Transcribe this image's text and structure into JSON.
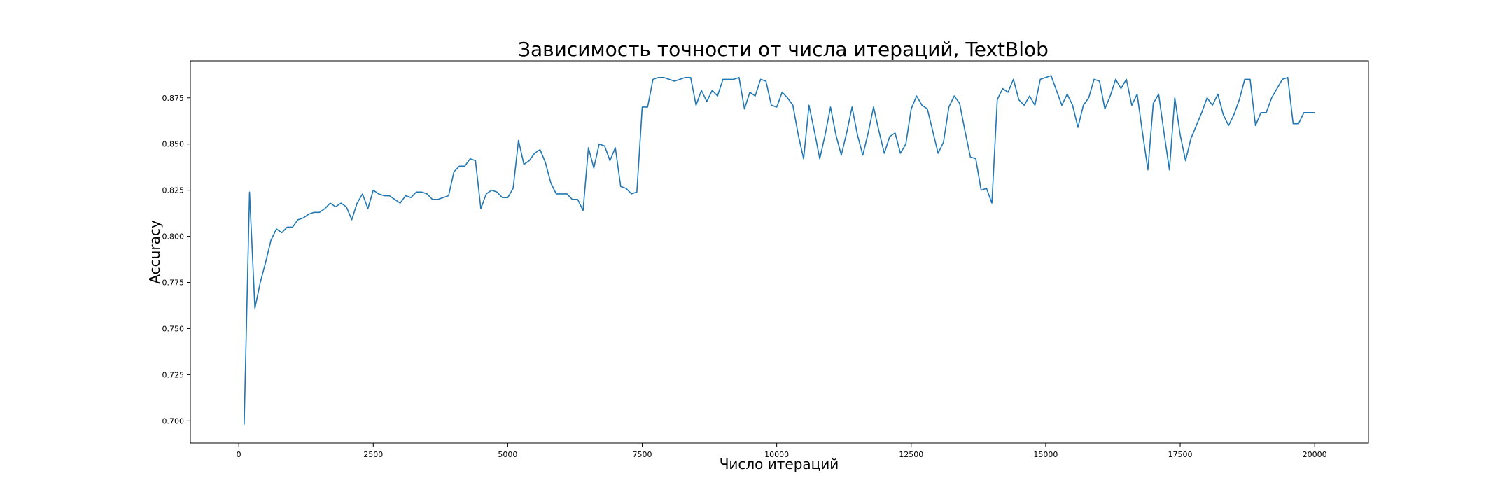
{
  "chart_data": {
    "type": "line",
    "title": "Зависимость точности от числа итераций, TextBlob",
    "xlabel": "Число итераций",
    "ylabel": "Accuracy",
    "xlim": [
      -900,
      21000
    ],
    "ylim": [
      0.688,
      0.895
    ],
    "xticks": [
      0,
      2500,
      5000,
      7500,
      10000,
      12500,
      15000,
      17500,
      20000
    ],
    "xtick_labels": [
      "0",
      "2500",
      "5000",
      "7500",
      "10000",
      "12500",
      "15000",
      "17500",
      "20000"
    ],
    "yticks": [
      0.7,
      0.725,
      0.75,
      0.775,
      0.8,
      0.825,
      0.85,
      0.875
    ],
    "ytick_labels": [
      "0.700",
      "0.725",
      "0.750",
      "0.775",
      "0.800",
      "0.825",
      "0.850",
      "0.875"
    ],
    "grid": false,
    "line_color": "#1f77b4",
    "x": [
      100,
      200,
      300,
      400,
      500,
      600,
      700,
      800,
      900,
      1000,
      1100,
      1200,
      1300,
      1400,
      1500,
      1600,
      1700,
      1800,
      1900,
      2000,
      2100,
      2200,
      2300,
      2400,
      2500,
      2600,
      2700,
      2800,
      2900,
      3000,
      3100,
      3200,
      3300,
      3400,
      3500,
      3600,
      3700,
      3800,
      3900,
      4000,
      4100,
      4200,
      4300,
      4400,
      4500,
      4600,
      4700,
      4800,
      4900,
      5000,
      5100,
      5200,
      5300,
      5400,
      5500,
      5600,
      5700,
      5800,
      5900,
      6000,
      6100,
      6200,
      6300,
      6400,
      6500,
      6600,
      6700,
      6800,
      6900,
      7000,
      7100,
      7200,
      7300,
      7400,
      7500,
      7600,
      7700,
      7800,
      7900,
      8000,
      8100,
      8200,
      8300,
      8400,
      8500,
      8600,
      8700,
      8800,
      8900,
      9000,
      9100,
      9200,
      9300,
      9400,
      9500,
      9600,
      9700,
      9800,
      9900,
      10000,
      10100,
      10200,
      10300,
      10400,
      10500,
      10600,
      10700,
      10800,
      10900,
      11000,
      11100,
      11200,
      11300,
      11400,
      11500,
      11600,
      11700,
      11800,
      11900,
      12000,
      12100,
      12200,
      12300,
      12400,
      12500,
      12600,
      12700,
      12800,
      12900,
      13000,
      13100,
      13200,
      13300,
      13400,
      13500,
      13600,
      13700,
      13800,
      13900,
      14000,
      14100,
      14200,
      14300,
      14400,
      14500,
      14600,
      14700,
      14800,
      14900,
      15000,
      15100,
      15200,
      15300,
      15400,
      15500,
      15600,
      15700,
      15800,
      15900,
      16000,
      16100,
      16200,
      16300,
      16400,
      16500,
      16600,
      16700,
      16800,
      16900,
      17000,
      17100,
      17200,
      17300,
      17400,
      17500,
      17600,
      17700,
      17800,
      17900,
      18000,
      18100,
      18200,
      18300,
      18400,
      18500,
      18600,
      18700,
      18800,
      18900,
      19000,
      19100,
      19200,
      19300,
      19400,
      19500,
      19600,
      19700,
      19800,
      19900,
      20000
    ],
    "y": [
      0.698,
      0.824,
      0.761,
      0.775,
      0.786,
      0.798,
      0.804,
      0.802,
      0.805,
      0.805,
      0.809,
      0.81,
      0.812,
      0.813,
      0.813,
      0.815,
      0.818,
      0.816,
      0.818,
      0.816,
      0.809,
      0.818,
      0.823,
      0.815,
      0.825,
      0.823,
      0.822,
      0.822,
      0.82,
      0.818,
      0.822,
      0.821,
      0.824,
      0.824,
      0.823,
      0.82,
      0.82,
      0.821,
      0.822,
      0.835,
      0.838,
      0.838,
      0.842,
      0.841,
      0.815,
      0.823,
      0.825,
      0.824,
      0.821,
      0.821,
      0.826,
      0.852,
      0.839,
      0.841,
      0.845,
      0.847,
      0.84,
      0.829,
      0.823,
      0.823,
      0.823,
      0.82,
      0.82,
      0.814,
      0.848,
      0.837,
      0.85,
      0.849,
      0.841,
      0.848,
      0.827,
      0.826,
      0.823,
      0.824,
      0.87,
      0.87,
      0.885,
      0.886,
      0.886,
      0.885,
      0.884,
      0.885,
      0.886,
      0.886,
      0.871,
      0.879,
      0.873,
      0.879,
      0.876,
      0.885,
      0.885,
      0.885,
      0.886,
      0.869,
      0.878,
      0.876,
      0.885,
      0.884,
      0.871,
      0.87,
      0.878,
      0.875,
      0.871,
      0.855,
      0.842,
      0.871,
      0.857,
      0.842,
      0.855,
      0.87,
      0.855,
      0.844,
      0.856,
      0.87,
      0.855,
      0.844,
      0.856,
      0.87,
      0.857,
      0.845,
      0.854,
      0.856,
      0.845,
      0.85,
      0.869,
      0.876,
      0.871,
      0.869,
      0.857,
      0.845,
      0.851,
      0.87,
      0.876,
      0.872,
      0.857,
      0.843,
      0.842,
      0.825,
      0.826,
      0.818,
      0.874,
      0.88,
      0.878,
      0.885,
      0.874,
      0.871,
      0.876,
      0.871,
      0.885,
      0.886,
      0.887,
      0.879,
      0.871,
      0.877,
      0.871,
      0.859,
      0.871,
      0.875,
      0.885,
      0.884,
      0.869,
      0.876,
      0.885,
      0.88,
      0.885,
      0.871,
      0.877,
      0.856,
      0.836,
      0.872,
      0.877,
      0.856,
      0.836,
      0.875,
      0.855,
      0.841,
      0.853,
      0.86,
      0.867,
      0.875,
      0.871,
      0.877,
      0.866,
      0.86,
      0.866,
      0.874,
      0.885,
      0.885,
      0.86,
      0.867,
      0.867,
      0.875,
      0.88,
      0.885,
      0.886,
      0.861,
      0.861,
      0.867,
      0.867,
      0.867
    ]
  }
}
